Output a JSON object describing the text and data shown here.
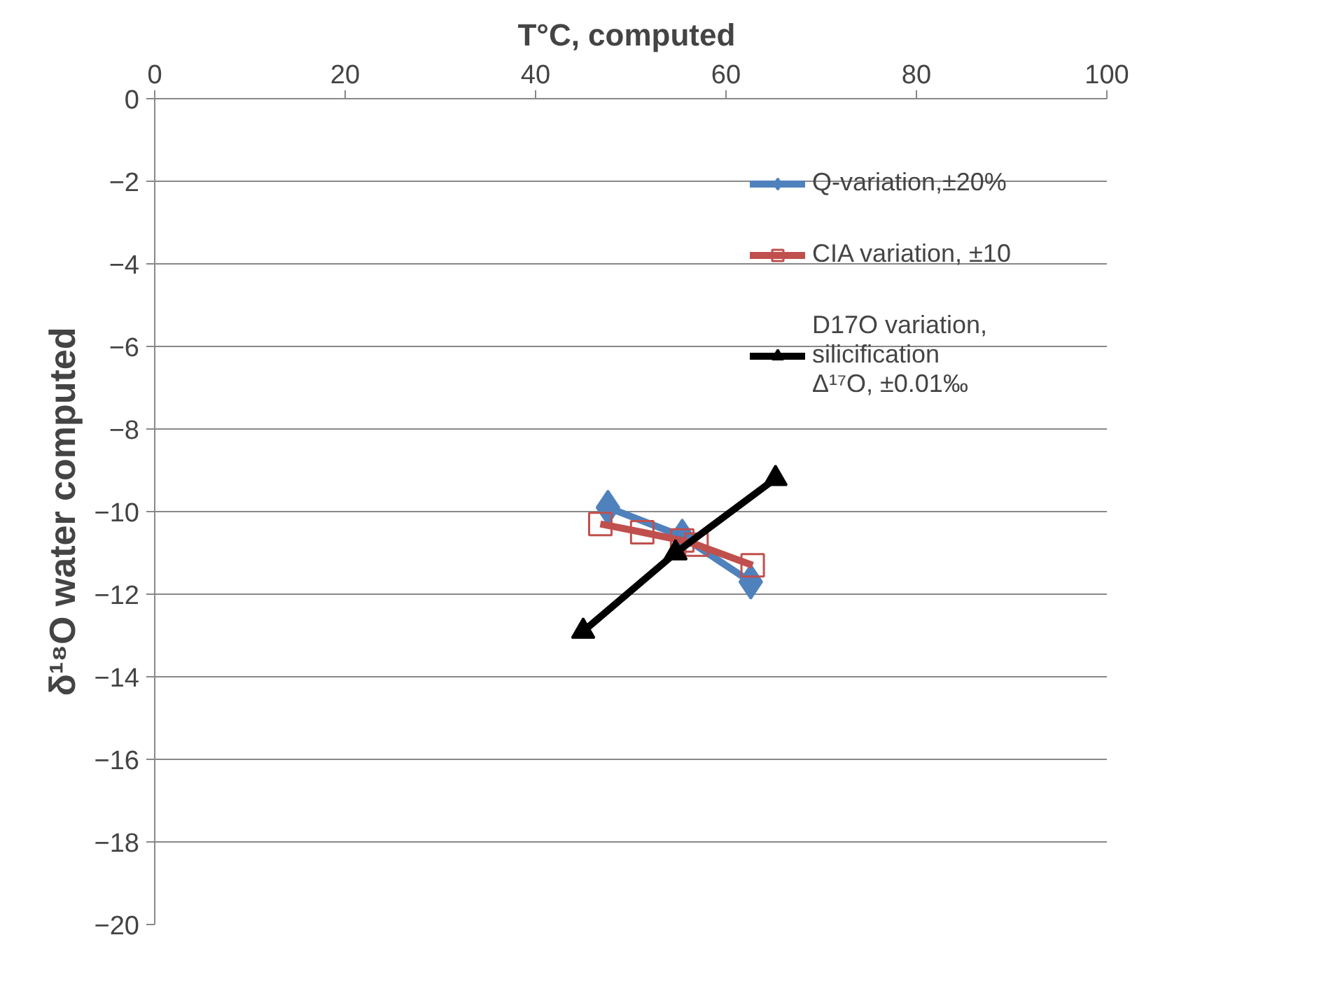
{
  "chart_data": {
    "type": "line",
    "xlabel": "T°C,  computed",
    "ylabel": "δ¹⁸O water computed",
    "xlim": [
      0,
      100
    ],
    "xticks": [
      0,
      20,
      40,
      60,
      80,
      100
    ],
    "ylim": [
      -20,
      0
    ],
    "yticks": [
      0,
      -2,
      -4,
      -6,
      -8,
      -10,
      -12,
      -14,
      -16,
      -18,
      -20
    ],
    "grid": "y",
    "legend": "right",
    "series": [
      {
        "name": "Q-variation,±20%",
        "color": "#4f81bd",
        "marker": "diamond",
        "x": [
          47.6,
          55.4,
          62.6
        ],
        "values": [
          -9.9,
          -10.6,
          -11.7
        ]
      },
      {
        "name": "CIA variation, ±10",
        "color": "#c0504d",
        "marker": "square",
        "x": [
          46.8,
          51.2,
          55.4,
          56.9,
          62.8
        ],
        "values": [
          -10.3,
          -10.5,
          -10.7,
          -10.8,
          -11.3
        ]
      },
      {
        "name": "D17O variation,\nsilicification\nΔ¹⁷O, ±0.01‰",
        "color": "#000000",
        "marker": "triangle",
        "x": [
          45.0,
          54.7,
          65.2
        ],
        "values": [
          -12.9,
          -11.0,
          -9.2
        ]
      }
    ]
  }
}
